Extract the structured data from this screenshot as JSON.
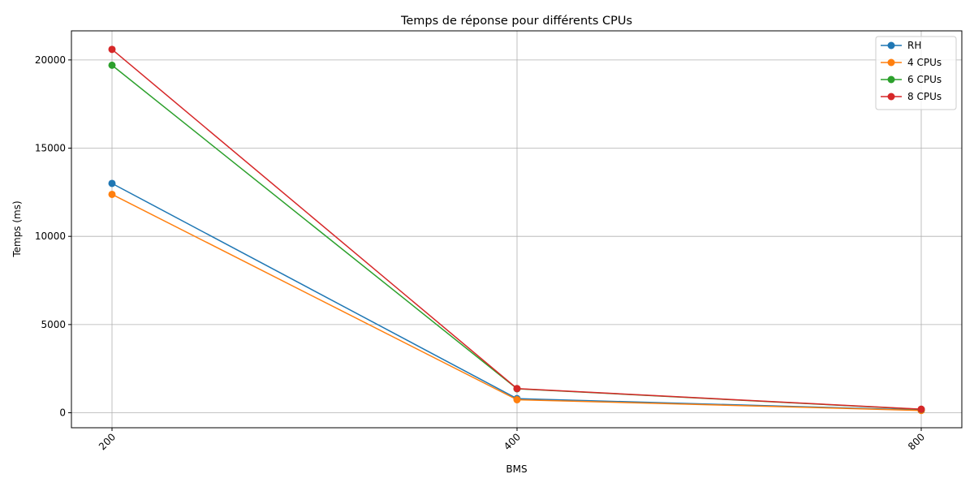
{
  "chart_data": {
    "type": "line",
    "title": "Temps de réponse pour différents CPUs",
    "xlabel": "BMS",
    "ylabel": "Temps (ms)",
    "categories": [
      "200",
      "400",
      "800"
    ],
    "yticks": [
      "0",
      "5000",
      "10000",
      "15000",
      "20000"
    ],
    "ylim": [
      -850,
      21650
    ],
    "grid": true,
    "legend_position": "top-right",
    "series": [
      {
        "name": "RH",
        "color": "#1f77b4",
        "values": [
          13000,
          800,
          150
        ]
      },
      {
        "name": "4 CPUs",
        "color": "#ff7f0e",
        "values": [
          12380,
          740,
          130
        ]
      },
      {
        "name": "6 CPUs",
        "color": "#2ca02c",
        "values": [
          19700,
          1360,
          190
        ]
      },
      {
        "name": "8 CPUs",
        "color": "#d62728",
        "values": [
          20600,
          1370,
          200
        ]
      }
    ]
  }
}
